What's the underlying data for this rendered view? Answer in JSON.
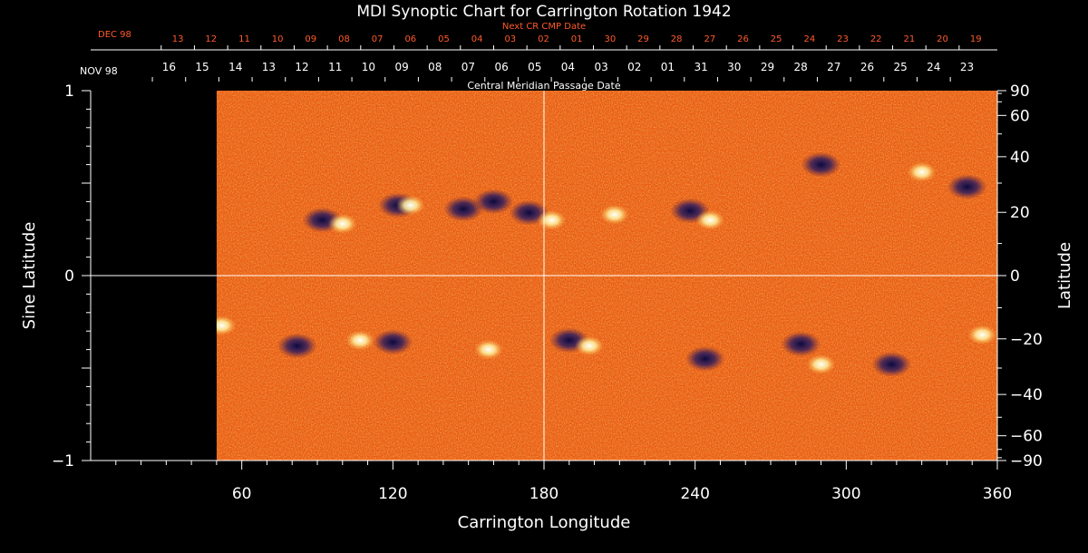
{
  "chart_data": {
    "type": "heatmap",
    "title": "MDI Synoptic Chart for Carrington Rotation 1942",
    "xlabel": "Carrington Longitude",
    "ylabel_left": "Sine Latitude",
    "ylabel_right": "Latitude",
    "xlim": [
      0,
      360
    ],
    "ylim": [
      -1,
      1
    ],
    "x_ticks": [
      60,
      120,
      180,
      240,
      300,
      360
    ],
    "y_ticks_left": [
      -1,
      0,
      1
    ],
    "y_ticks_right": [
      90,
      60,
      40,
      20,
      0,
      -20,
      -40,
      -60,
      -90
    ],
    "data_coverage_start_longitude": 50,
    "central_meridian_label": "Central Meridian Passage Date",
    "cmp_month_label": "NOV 98",
    "cmp_dates": [
      "16",
      "15",
      "14",
      "13",
      "12",
      "11",
      "10",
      "09",
      "08",
      "07",
      "06",
      "05",
      "04",
      "03",
      "02",
      "01",
      "31",
      "30",
      "29",
      "28",
      "27",
      "26",
      "25",
      "24",
      "23"
    ],
    "next_cr_label": "Next CR CMP Date",
    "next_cr_month_label": "DEC 98",
    "next_cr_dates": [
      "13",
      "12",
      "11",
      "10",
      "09",
      "08",
      "07",
      "06",
      "05",
      "04",
      "03",
      "02",
      "01",
      "30",
      "29",
      "28",
      "27",
      "26",
      "25",
      "24",
      "23",
      "22",
      "21",
      "20",
      "19"
    ],
    "grid": "center crosshair (longitude 180, latitude 0)",
    "colors": {
      "background": "#000000",
      "quiet_field": "#f05a10",
      "positive_polarity": "#fff6c0",
      "negative_polarity": "#1a1a5a",
      "axis": "#ffffff",
      "next_cr_text": "#ff5a2a"
    },
    "active_regions": [
      {
        "lon": 92,
        "sinlat": 0.3,
        "polarity": "negative"
      },
      {
        "lon": 100,
        "sinlat": 0.28,
        "polarity": "positive"
      },
      {
        "lon": 122,
        "sinlat": 0.38,
        "polarity": "negative"
      },
      {
        "lon": 127,
        "sinlat": 0.38,
        "polarity": "positive"
      },
      {
        "lon": 148,
        "sinlat": 0.36,
        "polarity": "negative"
      },
      {
        "lon": 160,
        "sinlat": 0.4,
        "polarity": "negative"
      },
      {
        "lon": 174,
        "sinlat": 0.34,
        "polarity": "negative"
      },
      {
        "lon": 183,
        "sinlat": 0.3,
        "polarity": "positive"
      },
      {
        "lon": 208,
        "sinlat": 0.33,
        "polarity": "positive"
      },
      {
        "lon": 238,
        "sinlat": 0.35,
        "polarity": "negative"
      },
      {
        "lon": 246,
        "sinlat": 0.3,
        "polarity": "positive"
      },
      {
        "lon": 290,
        "sinlat": 0.6,
        "polarity": "negative"
      },
      {
        "lon": 330,
        "sinlat": 0.56,
        "polarity": "positive"
      },
      {
        "lon": 348,
        "sinlat": 0.48,
        "polarity": "negative"
      },
      {
        "lon": 52,
        "sinlat": -0.27,
        "polarity": "positive"
      },
      {
        "lon": 82,
        "sinlat": -0.38,
        "polarity": "negative"
      },
      {
        "lon": 107,
        "sinlat": -0.35,
        "polarity": "positive"
      },
      {
        "lon": 120,
        "sinlat": -0.36,
        "polarity": "negative"
      },
      {
        "lon": 158,
        "sinlat": -0.4,
        "polarity": "positive"
      },
      {
        "lon": 190,
        "sinlat": -0.35,
        "polarity": "negative"
      },
      {
        "lon": 198,
        "sinlat": -0.38,
        "polarity": "positive"
      },
      {
        "lon": 244,
        "sinlat": -0.45,
        "polarity": "negative"
      },
      {
        "lon": 282,
        "sinlat": -0.37,
        "polarity": "negative"
      },
      {
        "lon": 290,
        "sinlat": -0.48,
        "polarity": "positive"
      },
      {
        "lon": 318,
        "sinlat": -0.48,
        "polarity": "negative"
      },
      {
        "lon": 354,
        "sinlat": -0.32,
        "polarity": "positive"
      }
    ]
  }
}
